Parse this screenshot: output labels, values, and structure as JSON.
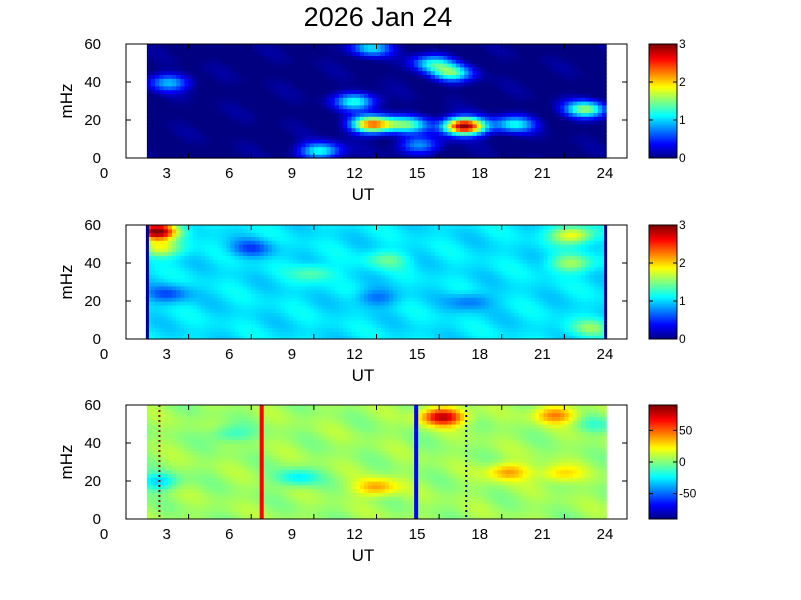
{
  "title": "2026 Jan 24",
  "chart_data": [
    {
      "type": "heatmap",
      "xlabel": "UT",
      "ylabel": "mHz",
      "xlim": [
        0,
        24
      ],
      "ylim": [
        0,
        60
      ],
      "xticks": [
        "0",
        "3",
        "6",
        "9",
        "12",
        "15",
        "18",
        "21",
        "24"
      ],
      "yticks": [
        "0",
        "20",
        "40",
        "60"
      ],
      "data_coverage_ut": [
        1,
        23
      ],
      "colorbar": {
        "range": [
          0,
          3
        ],
        "ticks": [
          "0",
          "1",
          "2",
          "3"
        ],
        "colormap": "jet"
      },
      "features": [
        {
          "ut": 16.2,
          "mhz": 17,
          "value": 3.0
        },
        {
          "ut": 11.8,
          "mhz": 18,
          "value": 2.3
        },
        {
          "ut": 13.5,
          "mhz": 18,
          "value": 1.3
        },
        {
          "ut": 18.6,
          "mhz": 18,
          "value": 1.1
        },
        {
          "ut": 11.0,
          "mhz": 30,
          "value": 1.2
        },
        {
          "ut": 22.0,
          "mhz": 26,
          "value": 1.5
        },
        {
          "ut": 15.6,
          "mhz": 45,
          "value": 1.3
        },
        {
          "ut": 14.7,
          "mhz": 50,
          "value": 1.1
        },
        {
          "ut": 9.3,
          "mhz": 4,
          "value": 1.2
        },
        {
          "ut": 11.7,
          "mhz": 58,
          "value": 1.0
        },
        {
          "ut": 2.1,
          "mhz": 40,
          "value": 0.9
        },
        {
          "ut": 14.0,
          "mhz": 7,
          "value": 0.8
        }
      ]
    },
    {
      "type": "heatmap",
      "xlabel": "UT",
      "ylabel": "mHz",
      "xlim": [
        0,
        24
      ],
      "ylim": [
        0,
        60
      ],
      "xticks": [
        "0",
        "3",
        "6",
        "9",
        "12",
        "15",
        "18",
        "21",
        "24"
      ],
      "yticks": [
        "0",
        "20",
        "40",
        "60"
      ],
      "data_coverage_ut": [
        1,
        23
      ],
      "colorbar": {
        "range": [
          0,
          3
        ],
        "ticks": [
          "0",
          "1",
          "2",
          "3"
        ],
        "colormap": "jet"
      },
      "background_value": 1.05,
      "features": [
        {
          "ut": 1.5,
          "mhz": 57,
          "value": 3.0
        },
        {
          "ut": 1.6,
          "mhz": 48,
          "value": 1.8
        },
        {
          "ut": 21.4,
          "mhz": 55,
          "value": 1.9
        },
        {
          "ut": 21.3,
          "mhz": 40,
          "value": 1.6
        },
        {
          "ut": 2.0,
          "mhz": 24,
          "value": 0.6
        },
        {
          "ut": 6.0,
          "mhz": 48,
          "value": 0.6
        },
        {
          "ut": 12.0,
          "mhz": 22,
          "value": 0.7
        },
        {
          "ut": 16.5,
          "mhz": 20,
          "value": 0.7
        },
        {
          "ut": 9.0,
          "mhz": 35,
          "value": 1.4
        },
        {
          "ut": 12.5,
          "mhz": 42,
          "value": 1.4
        },
        {
          "ut": 22.2,
          "mhz": 6,
          "value": 1.5
        }
      ]
    },
    {
      "type": "heatmap",
      "xlabel": "UT",
      "ylabel": "mHz",
      "xlim": [
        0,
        24
      ],
      "ylim": [
        0,
        60
      ],
      "xticks": [
        "0",
        "3",
        "6",
        "9",
        "12",
        "15",
        "18",
        "21",
        "24"
      ],
      "yticks": [
        "0",
        "20",
        "40",
        "60"
      ],
      "data_coverage_ut": [
        1,
        23
      ],
      "colorbar": {
        "range": [
          -90,
          90
        ],
        "ticks": [
          "50",
          "0",
          "-50"
        ],
        "tick_values": [
          50,
          0,
          -50
        ],
        "colormap": "jet"
      },
      "background_value": 5,
      "features": [
        {
          "ut": 15.2,
          "mhz": 54,
          "value": 80
        },
        {
          "ut": 20.6,
          "mhz": 55,
          "value": 45
        },
        {
          "ut": 12.0,
          "mhz": 17,
          "value": 40
        },
        {
          "ut": 18.3,
          "mhz": 25,
          "value": 40
        },
        {
          "ut": 20.8,
          "mhz": 24,
          "value": 30
        },
        {
          "ut": 1.5,
          "mhz": 20,
          "value": -30
        },
        {
          "ut": 8.2,
          "mhz": 22,
          "value": -25
        },
        {
          "ut": 5.0,
          "mhz": 45,
          "value": -15
        },
        {
          "ut": 22.5,
          "mhz": 50,
          "value": -10
        }
      ],
      "vertical_markers": [
        {
          "ut": 6.5,
          "color": "#ff0000",
          "style": "solid"
        },
        {
          "ut": 13.9,
          "color": "#0000ff",
          "style": "solid"
        },
        {
          "ut": 1.6,
          "color": "#7f0000",
          "style": "dotted"
        },
        {
          "ut": 16.3,
          "color": "#00007f",
          "style": "dotted"
        }
      ]
    }
  ]
}
